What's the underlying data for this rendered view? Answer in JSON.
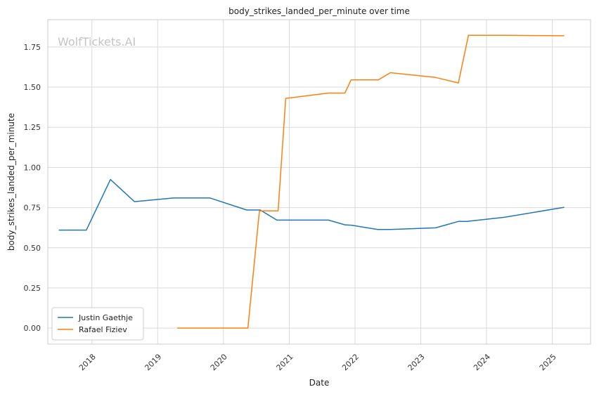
{
  "watermark": "WolfTickets.AI",
  "chart_data": {
    "type": "line",
    "title": "body_strikes_landed_per_minute over time",
    "xlabel": "Date",
    "ylabel": "body_strikes_landed_per_minute",
    "x_type": "date",
    "xlim": [
      "2017-05-01",
      "2025-08-01"
    ],
    "ylim": [
      -0.1,
      1.92
    ],
    "grid": true,
    "legend_position": "lower-left",
    "x_ticks": [
      "2018-01-01",
      "2019-01-01",
      "2020-01-01",
      "2021-01-01",
      "2022-01-01",
      "2023-01-01",
      "2024-01-01",
      "2025-01-01"
    ],
    "x_tick_labels": [
      "2018",
      "2019",
      "2020",
      "2021",
      "2022",
      "2023",
      "2024",
      "2025"
    ],
    "y_ticks": [
      0.0,
      0.25,
      0.5,
      0.75,
      1.0,
      1.25,
      1.5,
      1.75
    ],
    "y_tick_labels": [
      "0.00",
      "0.25",
      "0.50",
      "0.75",
      "1.00",
      "1.25",
      "1.50",
      "1.75"
    ],
    "series": [
      {
        "name": "Justin Gaethje",
        "color": "#1f77b4",
        "points": [
          [
            "2017-07-01",
            0.61
          ],
          [
            "2017-12-01",
            0.61
          ],
          [
            "2018-04-14",
            0.925
          ],
          [
            "2018-08-25",
            0.787
          ],
          [
            "2019-03-30",
            0.81
          ],
          [
            "2019-10-19",
            0.81
          ],
          [
            "2020-05-09",
            0.735
          ],
          [
            "2020-07-24",
            0.735
          ],
          [
            "2020-10-24",
            0.672
          ],
          [
            "2021-08-07",
            0.672
          ],
          [
            "2021-11-06",
            0.643
          ],
          [
            "2021-12-15",
            0.64
          ],
          [
            "2022-05-07",
            0.614
          ],
          [
            "2022-07-15",
            0.614
          ],
          [
            "2023-03-25",
            0.624
          ],
          [
            "2023-07-29",
            0.664
          ],
          [
            "2023-09-15",
            0.664
          ],
          [
            "2024-04-13",
            0.69
          ],
          [
            "2025-03-08",
            0.752
          ]
        ]
      },
      {
        "name": "Rafael Fiziev",
        "color": "#ff7f0e",
        "points": [
          [
            "2019-04-20",
            0.0
          ],
          [
            "2020-05-16",
            0.0
          ],
          [
            "2020-07-19",
            0.73
          ],
          [
            "2020-10-31",
            0.73
          ],
          [
            "2020-12-12",
            1.43
          ],
          [
            "2021-08-07",
            1.463
          ],
          [
            "2021-11-06",
            1.463
          ],
          [
            "2021-12-10",
            1.545
          ],
          [
            "2022-05-10",
            1.545
          ],
          [
            "2022-07-16",
            1.59
          ],
          [
            "2023-03-25",
            1.56
          ],
          [
            "2023-07-29",
            1.526
          ],
          [
            "2023-09-23",
            1.823
          ],
          [
            "2024-04-13",
            1.823
          ],
          [
            "2025-03-08",
            1.82
          ]
        ]
      }
    ]
  }
}
